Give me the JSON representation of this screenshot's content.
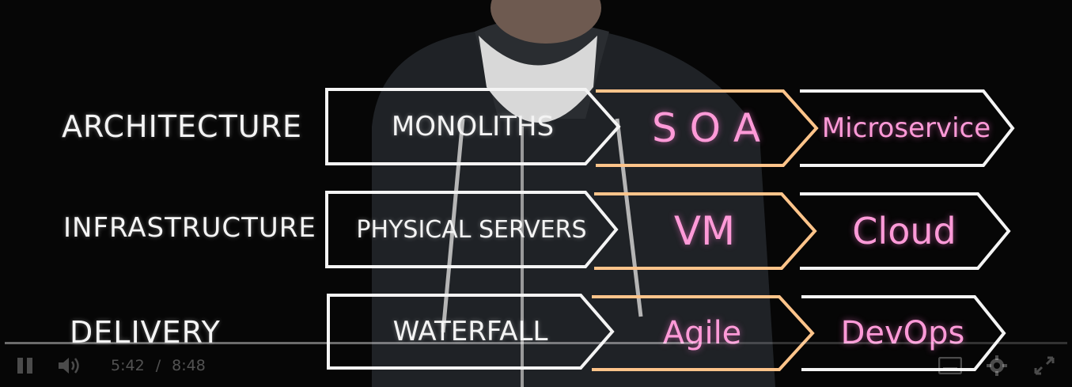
{
  "colors": {
    "background": "#060606",
    "chalk_white": "#f4f4f4",
    "neon_pink": "#ff9ad8",
    "neon_orange": "#ffc48a"
  },
  "rows": [
    {
      "label": "ARCHITECTURE",
      "stages": [
        "MONOLITHS",
        "S O A",
        "Microservice"
      ]
    },
    {
      "label": "INFRASTRUCTURE",
      "stages": [
        "PHYSICAL SERVERS",
        "VM",
        "Cloud"
      ]
    },
    {
      "label": "DELIVERY",
      "stages": [
        "WATERFALL",
        "Agile",
        "DevOps"
      ]
    }
  ],
  "player": {
    "current_time": "5:42",
    "separator": "/",
    "duration": "8:48",
    "progress_fraction": 0.648,
    "icons": [
      "pause-icon",
      "volume-icon",
      "captions-icon",
      "gear-icon",
      "fullscreen-icon"
    ]
  }
}
